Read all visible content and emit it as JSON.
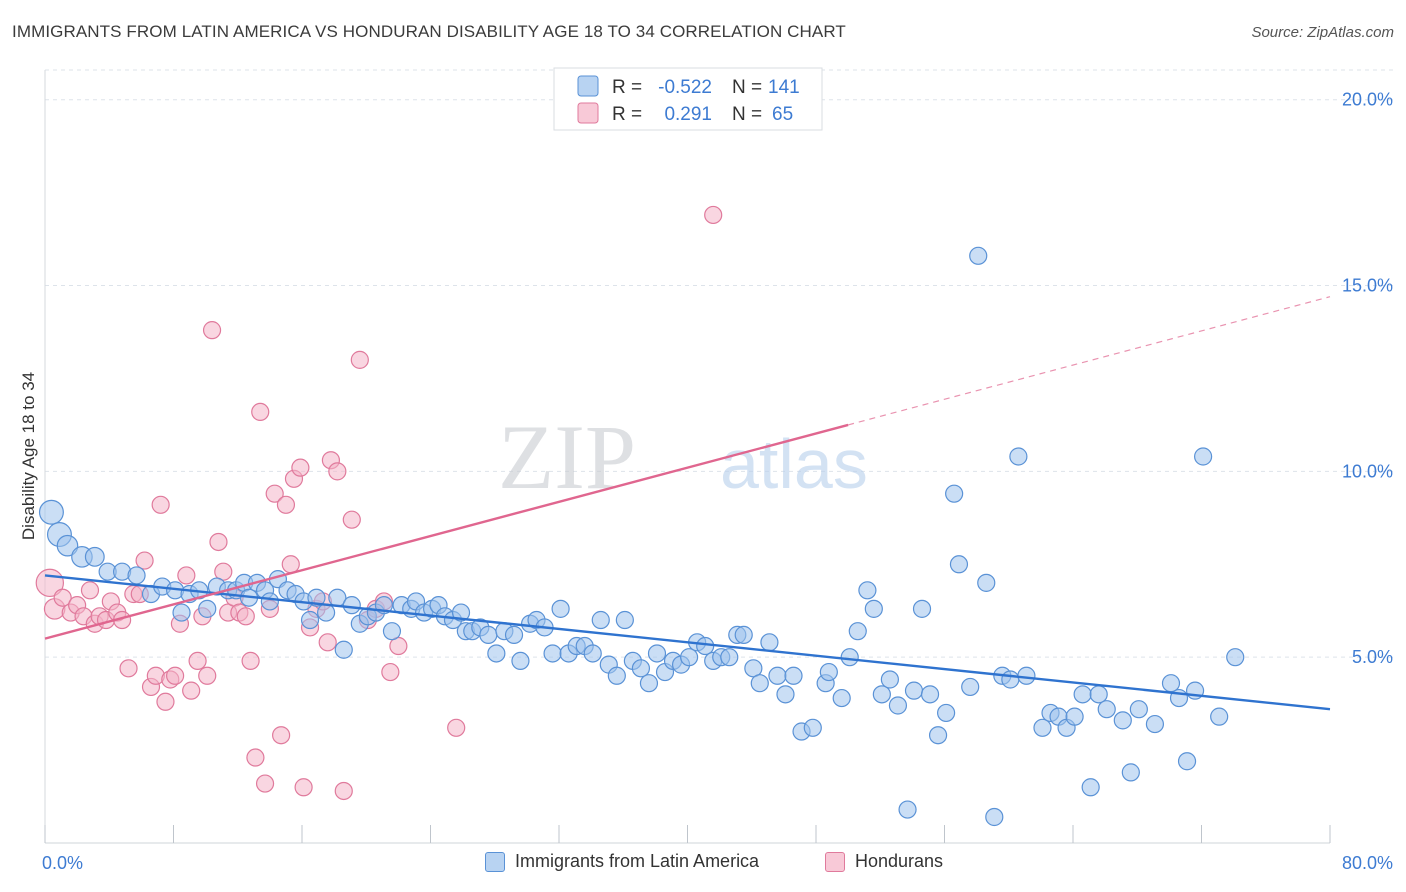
{
  "title": "IMMIGRANTS FROM LATIN AMERICA VS HONDURAN DISABILITY AGE 18 TO 34 CORRELATION CHART",
  "source": "Source: ZipAtlas.com",
  "watermark": {
    "zip": "ZIP",
    "atlas": "atlas"
  },
  "colors": {
    "blue_fill": "#9ec3ec",
    "blue_stroke": "#5a92d6",
    "blue_line": "#2f73cf",
    "pink_fill": "#f4b5c8",
    "pink_stroke": "#e07a9c",
    "pink_line": "#e0668f",
    "grid": "#dde3ea",
    "tick_text": "#3d7bd2"
  },
  "legend_top": {
    "rows": [
      {
        "r_label": "R =",
        "r_value": "-0.522",
        "n_label": "N =",
        "n_value": "141"
      },
      {
        "r_label": "R =",
        "r_value": "0.291",
        "n_label": "N =",
        "n_value": "65"
      }
    ]
  },
  "legend_bottom": [
    "Immigrants from Latin America",
    "Hondurans"
  ],
  "chart_data": {
    "type": "scatter",
    "title": "IMMIGRANTS FROM LATIN AMERICA VS HONDURAN DISABILITY AGE 18 TO 34 CORRELATION CHART",
    "xlabel": "",
    "ylabel": "Disability Age 18 to 34",
    "xlim": [
      0,
      80
    ],
    "ylim": [
      0,
      20.8
    ],
    "x_tick_labels": [
      "0.0%",
      "80.0%"
    ],
    "y_ticks": [
      5,
      10,
      15,
      20
    ],
    "y_tick_labels": [
      "5.0%",
      "10.0%",
      "15.0%",
      "20.0%"
    ],
    "grid": true,
    "legend_position": "top-center",
    "series": [
      {
        "name": "Immigrants from Latin America",
        "trend": {
          "x": [
            0,
            80
          ],
          "y": [
            7.2,
            3.6
          ],
          "dashed_from": null
        },
        "points": [
          [
            0.4,
            8.9,
            1.4
          ],
          [
            0.9,
            8.3,
            1.4
          ],
          [
            1.4,
            8.0,
            1.2
          ],
          [
            2.3,
            7.7,
            1.2
          ],
          [
            3.1,
            7.7,
            1.1
          ],
          [
            3.9,
            7.3,
            1.0
          ],
          [
            4.8,
            7.3,
            1.0
          ],
          [
            5.7,
            7.2,
            1.0
          ],
          [
            6.6,
            6.7,
            1.0
          ],
          [
            7.3,
            6.9,
            1.0
          ],
          [
            8.1,
            6.8,
            1.0
          ],
          [
            8.5,
            6.2,
            1.0
          ],
          [
            9.0,
            6.7,
            1.0
          ],
          [
            9.6,
            6.8,
            1.0
          ],
          [
            10.1,
            6.3,
            1.0
          ],
          [
            10.7,
            6.9,
            1.0
          ],
          [
            11.4,
            6.8,
            1.0
          ],
          [
            11.9,
            6.8,
            1.0
          ],
          [
            12.4,
            7.0,
            1.0
          ],
          [
            12.7,
            6.6,
            1.0
          ],
          [
            13.2,
            7.0,
            1.0
          ],
          [
            13.7,
            6.8,
            1.0
          ],
          [
            14.0,
            6.5,
            1.0
          ],
          [
            14.5,
            7.1,
            1.0
          ],
          [
            15.1,
            6.8,
            1.0
          ],
          [
            15.6,
            6.7,
            1.0
          ],
          [
            16.1,
            6.5,
            1.0
          ],
          [
            16.5,
            6.0,
            1.0
          ],
          [
            16.9,
            6.6,
            1.0
          ],
          [
            17.5,
            6.2,
            1.0
          ],
          [
            18.2,
            6.6,
            1.0
          ],
          [
            18.6,
            5.2,
            1.0
          ],
          [
            19.1,
            6.4,
            1.0
          ],
          [
            19.6,
            5.9,
            1.0
          ],
          [
            20.1,
            6.1,
            1.0
          ],
          [
            20.6,
            6.2,
            1.0
          ],
          [
            21.1,
            6.4,
            1.0
          ],
          [
            21.6,
            5.7,
            1.0
          ],
          [
            22.2,
            6.4,
            1.0
          ],
          [
            22.8,
            6.3,
            1.0
          ],
          [
            23.1,
            6.5,
            1.0
          ],
          [
            23.6,
            6.2,
            1.0
          ],
          [
            24.1,
            6.3,
            1.0
          ],
          [
            24.5,
            6.4,
            1.0
          ],
          [
            24.9,
            6.1,
            1.0
          ],
          [
            25.4,
            6.0,
            1.0
          ],
          [
            25.9,
            6.2,
            1.0
          ],
          [
            26.2,
            5.7,
            1.0
          ],
          [
            26.6,
            5.7,
            1.0
          ],
          [
            27.1,
            5.8,
            1.0
          ],
          [
            27.6,
            5.6,
            1.0
          ],
          [
            28.1,
            5.1,
            1.0
          ],
          [
            28.6,
            5.7,
            1.0
          ],
          [
            29.2,
            5.6,
            1.0
          ],
          [
            29.6,
            4.9,
            1.0
          ],
          [
            30.2,
            5.9,
            1.0
          ],
          [
            30.6,
            6.0,
            1.0
          ],
          [
            31.1,
            5.8,
            1.0
          ],
          [
            31.6,
            5.1,
            1.0
          ],
          [
            32.1,
            6.3,
            1.0
          ],
          [
            32.6,
            5.1,
            1.0
          ],
          [
            33.1,
            5.3,
            1.0
          ],
          [
            33.6,
            5.3,
            1.0
          ],
          [
            34.1,
            5.1,
            1.0
          ],
          [
            34.6,
            6.0,
            1.0
          ],
          [
            35.1,
            4.8,
            1.0
          ],
          [
            35.6,
            4.5,
            1.0
          ],
          [
            36.1,
            6.0,
            1.0
          ],
          [
            36.6,
            4.9,
            1.0
          ],
          [
            37.1,
            4.7,
            1.0
          ],
          [
            37.6,
            4.3,
            1.0
          ],
          [
            38.1,
            5.1,
            1.0
          ],
          [
            38.6,
            4.6,
            1.0
          ],
          [
            39.1,
            4.9,
            1.0
          ],
          [
            39.6,
            4.8,
            1.0
          ],
          [
            40.1,
            5.0,
            1.0
          ],
          [
            40.6,
            5.4,
            1.0
          ],
          [
            41.1,
            5.3,
            1.0
          ],
          [
            41.6,
            4.9,
            1.0
          ],
          [
            42.1,
            5.0,
            1.0
          ],
          [
            42.6,
            5.0,
            1.0
          ],
          [
            43.1,
            5.6,
            1.0
          ],
          [
            43.5,
            5.6,
            1.0
          ],
          [
            44.1,
            4.7,
            1.0
          ],
          [
            44.5,
            4.3,
            1.0
          ],
          [
            45.1,
            5.4,
            1.0
          ],
          [
            45.6,
            4.5,
            1.0
          ],
          [
            46.1,
            4.0,
            1.0
          ],
          [
            46.6,
            4.5,
            1.0
          ],
          [
            47.1,
            3.0,
            1.0
          ],
          [
            47.8,
            3.1,
            1.0
          ],
          [
            48.6,
            4.3,
            1.0
          ],
          [
            48.8,
            4.6,
            1.0
          ],
          [
            49.6,
            3.9,
            1.0
          ],
          [
            50.1,
            5.0,
            1.0
          ],
          [
            50.6,
            5.7,
            1.0
          ],
          [
            51.2,
            6.8,
            1.0
          ],
          [
            51.6,
            6.3,
            1.0
          ],
          [
            52.1,
            4.0,
            1.0
          ],
          [
            52.6,
            4.4,
            1.0
          ],
          [
            53.1,
            3.7,
            1.0
          ],
          [
            53.7,
            0.9,
            1.0
          ],
          [
            54.1,
            4.1,
            1.0
          ],
          [
            54.6,
            6.3,
            1.0
          ],
          [
            55.1,
            4.0,
            1.0
          ],
          [
            55.6,
            2.9,
            1.0
          ],
          [
            56.1,
            3.5,
            1.0
          ],
          [
            56.6,
            9.4,
            1.0
          ],
          [
            56.9,
            7.5,
            1.0
          ],
          [
            57.6,
            4.2,
            1.0
          ],
          [
            58.1,
            15.8,
            1.0
          ],
          [
            58.6,
            7.0,
            1.0
          ],
          [
            59.1,
            0.7,
            1.0
          ],
          [
            59.6,
            4.5,
            1.0
          ],
          [
            60.1,
            4.4,
            1.0
          ],
          [
            60.6,
            10.4,
            1.0
          ],
          [
            61.1,
            4.5,
            1.0
          ],
          [
            62.1,
            3.1,
            1.0
          ],
          [
            62.6,
            3.5,
            1.0
          ],
          [
            63.1,
            3.4,
            1.0
          ],
          [
            63.6,
            3.1,
            1.0
          ],
          [
            64.1,
            3.4,
            1.0
          ],
          [
            64.6,
            4.0,
            1.0
          ],
          [
            65.1,
            1.5,
            1.0
          ],
          [
            65.6,
            4.0,
            1.0
          ],
          [
            66.1,
            3.6,
            1.0
          ],
          [
            67.6,
            1.9,
            1.0
          ],
          [
            67.1,
            3.3,
            1.0
          ],
          [
            68.1,
            3.6,
            1.0
          ],
          [
            69.1,
            3.2,
            1.0
          ],
          [
            70.1,
            4.3,
            1.0
          ],
          [
            70.6,
            3.9,
            1.0
          ],
          [
            71.1,
            2.2,
            1.0
          ],
          [
            71.6,
            4.1,
            1.0
          ],
          [
            72.1,
            10.4,
            1.0
          ],
          [
            73.1,
            3.4,
            1.0
          ],
          [
            74.1,
            5.0,
            1.0
          ]
        ]
      },
      {
        "name": "Hondurans",
        "trend": {
          "x": [
            0,
            80
          ],
          "y": [
            5.5,
            14.7
          ],
          "dashed_from": 50
        },
        "points": [
          [
            0.3,
            7.0,
            1.6
          ],
          [
            0.6,
            6.3,
            1.2
          ],
          [
            1.1,
            6.6,
            1.0
          ],
          [
            1.6,
            6.2,
            1.0
          ],
          [
            2.0,
            6.4,
            1.0
          ],
          [
            2.4,
            6.1,
            1.0
          ],
          [
            2.8,
            6.8,
            1.0
          ],
          [
            3.1,
            5.9,
            1.0
          ],
          [
            3.4,
            6.1,
            1.0
          ],
          [
            3.8,
            6.0,
            1.0
          ],
          [
            4.1,
            6.5,
            1.0
          ],
          [
            4.5,
            6.2,
            1.0
          ],
          [
            4.8,
            6.0,
            1.0
          ],
          [
            5.2,
            4.7,
            1.0
          ],
          [
            5.5,
            6.7,
            1.0
          ],
          [
            5.9,
            6.7,
            1.0
          ],
          [
            6.2,
            7.6,
            1.0
          ],
          [
            6.6,
            4.2,
            1.0
          ],
          [
            6.9,
            4.5,
            1.0
          ],
          [
            7.2,
            9.1,
            1.0
          ],
          [
            7.5,
            3.8,
            1.0
          ],
          [
            7.8,
            4.4,
            1.0
          ],
          [
            8.1,
            4.5,
            1.0
          ],
          [
            8.4,
            5.9,
            1.0
          ],
          [
            8.8,
            7.2,
            1.0
          ],
          [
            9.1,
            4.1,
            1.0
          ],
          [
            9.5,
            4.9,
            1.0
          ],
          [
            9.8,
            6.1,
            1.0
          ],
          [
            10.1,
            4.5,
            1.0
          ],
          [
            10.4,
            13.8,
            1.0
          ],
          [
            10.8,
            8.1,
            1.0
          ],
          [
            11.1,
            7.3,
            1.0
          ],
          [
            11.4,
            6.2,
            1.0
          ],
          [
            11.8,
            6.6,
            1.0
          ],
          [
            12.1,
            6.2,
            1.0
          ],
          [
            12.5,
            6.1,
            1.0
          ],
          [
            12.8,
            4.9,
            1.0
          ],
          [
            13.1,
            2.3,
            1.0
          ],
          [
            13.4,
            11.6,
            1.0
          ],
          [
            13.7,
            1.6,
            1.0
          ],
          [
            14.0,
            6.3,
            1.0
          ],
          [
            14.3,
            9.4,
            1.0
          ],
          [
            14.7,
            2.9,
            1.0
          ],
          [
            15.0,
            9.1,
            1.0
          ],
          [
            15.3,
            7.5,
            1.0
          ],
          [
            15.5,
            9.8,
            1.0
          ],
          [
            15.9,
            10.1,
            1.0
          ],
          [
            16.1,
            1.5,
            1.0
          ],
          [
            16.5,
            5.8,
            1.0
          ],
          [
            16.9,
            6.3,
            1.0
          ],
          [
            17.3,
            6.5,
            1.0
          ],
          [
            17.6,
            5.4,
            1.0
          ],
          [
            17.8,
            10.3,
            1.0
          ],
          [
            18.2,
            10.0,
            1.0
          ],
          [
            18.6,
            1.4,
            1.0
          ],
          [
            19.1,
            8.7,
            1.0
          ],
          [
            19.6,
            13.0,
            1.0
          ],
          [
            20.1,
            6.0,
            1.0
          ],
          [
            20.6,
            6.3,
            1.0
          ],
          [
            21.1,
            6.5,
            1.0
          ],
          [
            21.5,
            4.6,
            1.0
          ],
          [
            22.0,
            5.3,
            1.0
          ],
          [
            25.6,
            3.1,
            1.0
          ],
          [
            41.6,
            16.9,
            1.0
          ]
        ]
      }
    ]
  }
}
